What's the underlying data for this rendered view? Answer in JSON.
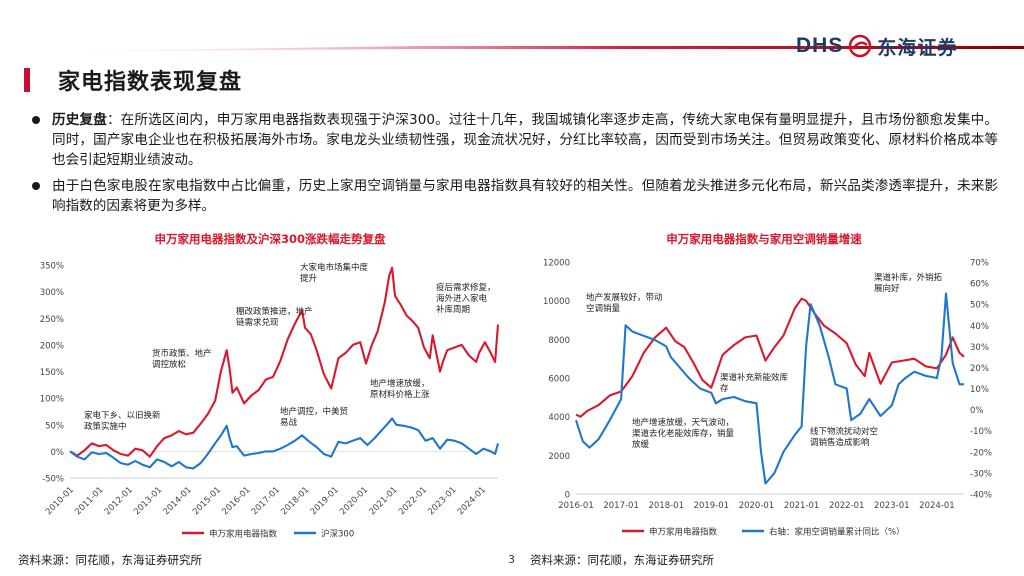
{
  "header": {
    "logo_latin": "DHS",
    "logo_cn": "东海证券",
    "title": "家电指数表现复盘"
  },
  "bullets": [
    {
      "label": "历史复盘",
      "text": "：在所选区间内，申万家用电器指数表现强于沪深300。过往十几年，我国城镇化率逐步走高，传统大家电保有量明显提升，且市场份额愈发集中。同时，国产家电企业也在积极拓展海外市场。家电龙头业绩韧性强，现金流状况好，分红比率较高，因而受到市场关注。但贸易政策变化、原材料价格成本等也会引起短期业绩波动。"
    },
    {
      "label": "",
      "text": "由于白色家电股在家电指数中占比偏重，历史上家用空调销量与家用电器指数具有较好的相关性。但随着龙头推进多元化布局，新兴品类渗透率提升，未来影响指数的因素将更为多样。"
    }
  ],
  "colors": {
    "red": "#d7192e",
    "blue": "#1f77c9",
    "title_red": "#c8102e",
    "navy": "#1f3864"
  },
  "chart_data": [
    {
      "type": "line",
      "title": "申万家用电器指数及沪深300涨跌幅走势复盘",
      "x_labels": [
        "2010-01",
        "2011-01",
        "2012-01",
        "2013-01",
        "2014-01",
        "2015-01",
        "2016-01",
        "2017-01",
        "2018-01",
        "2019-01",
        "2020-01",
        "2021-01",
        "2022-01",
        "2023-01",
        "2024-01"
      ],
      "x_range": [
        2010.0,
        2024.75
      ],
      "y_ticks": [
        "350%",
        "300%",
        "250%",
        "200%",
        "150%",
        "100%",
        "50%",
        "0%",
        "-50%"
      ],
      "ylim": [
        -50,
        350
      ],
      "series": [
        {
          "name": "申万家用电器指数",
          "color": "#d7192e",
          "points": [
            [
              2010.0,
              0
            ],
            [
              2010.25,
              -8
            ],
            [
              2010.5,
              2
            ],
            [
              2010.75,
              15
            ],
            [
              2011.0,
              10
            ],
            [
              2011.25,
              12
            ],
            [
              2011.5,
              2
            ],
            [
              2011.75,
              -5
            ],
            [
              2012.0,
              -8
            ],
            [
              2012.25,
              5
            ],
            [
              2012.5,
              2
            ],
            [
              2012.75,
              -10
            ],
            [
              2013.0,
              10
            ],
            [
              2013.25,
              25
            ],
            [
              2013.5,
              30
            ],
            [
              2013.75,
              38
            ],
            [
              2014.0,
              32
            ],
            [
              2014.25,
              35
            ],
            [
              2014.5,
              52
            ],
            [
              2014.75,
              70
            ],
            [
              2015.0,
              95
            ],
            [
              2015.2,
              150
            ],
            [
              2015.4,
              190
            ],
            [
              2015.5,
              155
            ],
            [
              2015.6,
              110
            ],
            [
              2015.75,
              120
            ],
            [
              2016.0,
              90
            ],
            [
              2016.25,
              105
            ],
            [
              2016.5,
              115
            ],
            [
              2016.75,
              135
            ],
            [
              2017.0,
              140
            ],
            [
              2017.25,
              170
            ],
            [
              2017.5,
              210
            ],
            [
              2017.75,
              240
            ],
            [
              2018.0,
              265
            ],
            [
              2018.1,
              232
            ],
            [
              2018.3,
              220
            ],
            [
              2018.5,
              190
            ],
            [
              2018.75,
              145
            ],
            [
              2019.0,
              118
            ],
            [
              2019.25,
              175
            ],
            [
              2019.5,
              185
            ],
            [
              2019.75,
              200
            ],
            [
              2020.0,
              205
            ],
            [
              2020.2,
              165
            ],
            [
              2020.4,
              200
            ],
            [
              2020.6,
              225
            ],
            [
              2020.85,
              280
            ],
            [
              2021.0,
              330
            ],
            [
              2021.1,
              345
            ],
            [
              2021.2,
              292
            ],
            [
              2021.4,
              275
            ],
            [
              2021.6,
              255
            ],
            [
              2021.8,
              245
            ],
            [
              2022.0,
              232
            ],
            [
              2022.2,
              195
            ],
            [
              2022.4,
              175
            ],
            [
              2022.5,
              218
            ],
            [
              2022.75,
              150
            ],
            [
              2022.85,
              168
            ],
            [
              2023.0,
              190
            ],
            [
              2023.25,
              195
            ],
            [
              2023.5,
              200
            ],
            [
              2023.75,
              180
            ],
            [
              2024.0,
              168
            ],
            [
              2024.1,
              185
            ],
            [
              2024.3,
              205
            ],
            [
              2024.5,
              185
            ],
            [
              2024.65,
              168
            ],
            [
              2024.75,
              238
            ]
          ]
        },
        {
          "name": "沪深300",
          "color": "#1f77c9",
          "points": [
            [
              2010.0,
              0
            ],
            [
              2010.25,
              -10
            ],
            [
              2010.5,
              -15
            ],
            [
              2010.75,
              -2
            ],
            [
              2011.0,
              -5
            ],
            [
              2011.25,
              -3
            ],
            [
              2011.5,
              -12
            ],
            [
              2011.75,
              -22
            ],
            [
              2012.0,
              -25
            ],
            [
              2012.25,
              -18
            ],
            [
              2012.5,
              -25
            ],
            [
              2012.75,
              -30
            ],
            [
              2013.0,
              -15
            ],
            [
              2013.25,
              -20
            ],
            [
              2013.5,
              -28
            ],
            [
              2013.75,
              -20
            ],
            [
              2014.0,
              -30
            ],
            [
              2014.25,
              -32
            ],
            [
              2014.5,
              -22
            ],
            [
              2014.75,
              -5
            ],
            [
              2015.0,
              15
            ],
            [
              2015.2,
              30
            ],
            [
              2015.4,
              48
            ],
            [
              2015.5,
              25
            ],
            [
              2015.6,
              8
            ],
            [
              2015.75,
              10
            ],
            [
              2016.0,
              -8
            ],
            [
              2016.25,
              -5
            ],
            [
              2016.5,
              -3
            ],
            [
              2016.75,
              0
            ],
            [
              2017.0,
              0
            ],
            [
              2017.25,
              5
            ],
            [
              2017.5,
              12
            ],
            [
              2017.75,
              20
            ],
            [
              2018.0,
              30
            ],
            [
              2018.25,
              18
            ],
            [
              2018.5,
              8
            ],
            [
              2018.75,
              -5
            ],
            [
              2019.0,
              -10
            ],
            [
              2019.25,
              18
            ],
            [
              2019.5,
              15
            ],
            [
              2019.75,
              20
            ],
            [
              2020.0,
              25
            ],
            [
              2020.25,
              12
            ],
            [
              2020.5,
              25
            ],
            [
              2020.75,
              40
            ],
            [
              2021.0,
              55
            ],
            [
              2021.1,
              62
            ],
            [
              2021.25,
              50
            ],
            [
              2021.5,
              48
            ],
            [
              2021.75,
              45
            ],
            [
              2022.0,
              40
            ],
            [
              2022.25,
              20
            ],
            [
              2022.5,
              25
            ],
            [
              2022.75,
              5
            ],
            [
              2023.0,
              22
            ],
            [
              2023.25,
              20
            ],
            [
              2023.5,
              15
            ],
            [
              2023.75,
              5
            ],
            [
              2024.0,
              -5
            ],
            [
              2024.25,
              5
            ],
            [
              2024.5,
              0
            ],
            [
              2024.65,
              -5
            ],
            [
              2024.75,
              15
            ]
          ]
        }
      ],
      "annotations": [
        {
          "lines": [
            "家电下乡、以旧换新",
            "政策实施中"
          ]
        },
        {
          "lines": [
            "货币政策、地产",
            "调控放松"
          ]
        },
        {
          "lines": [
            "棚改政策推进，地产",
            "链需求兑现"
          ]
        },
        {
          "lines": [
            "大家电市场集中度",
            "提升"
          ]
        },
        {
          "lines": [
            "地产调控，中美贸",
            "易战"
          ]
        },
        {
          "lines": [
            "地产增速放缓，",
            "原材料价格上涨"
          ]
        },
        {
          "lines": [
            "疫后需求修复，",
            "海外进入家电",
            "补库周期"
          ]
        }
      ],
      "legend": {
        "position": "bottom"
      }
    },
    {
      "type": "line",
      "title": "申万家用电器指数与家用空调销量增速",
      "x_labels": [
        "2016-01",
        "2017-01",
        "2018-01",
        "2019-01",
        "2020-01",
        "2021-01",
        "2022-01",
        "2023-01",
        "2024-01"
      ],
      "x_range": [
        2016.0,
        2024.6
      ],
      "y_ticks_left": [
        "12000",
        "10000",
        "8000",
        "6000",
        "4000",
        "2000",
        "0"
      ],
      "ylim_left": [
        0,
        12000
      ],
      "y_ticks_right": [
        "70%",
        "60%",
        "50%",
        "40%",
        "30%",
        "20%",
        "10%",
        "0%",
        "-10%",
        "-20%",
        "-30%",
        "-40%"
      ],
      "ylim_right": [
        -40,
        70
      ],
      "series": [
        {
          "name": "申万家用电器指数",
          "axis": "left",
          "color": "#d7192e",
          "points": [
            [
              2016.0,
              4100
            ],
            [
              2016.1,
              4000
            ],
            [
              2016.25,
              4300
            ],
            [
              2016.5,
              4600
            ],
            [
              2016.75,
              5100
            ],
            [
              2017.0,
              5300
            ],
            [
              2017.25,
              6100
            ],
            [
              2017.5,
              7300
            ],
            [
              2017.75,
              8100
            ],
            [
              2018.0,
              8600
            ],
            [
              2018.2,
              7900
            ],
            [
              2018.4,
              7600
            ],
            [
              2018.6,
              6800
            ],
            [
              2018.8,
              5900
            ],
            [
              2019.0,
              5500
            ],
            [
              2019.25,
              7200
            ],
            [
              2019.5,
              7700
            ],
            [
              2019.75,
              8100
            ],
            [
              2020.0,
              8200
            ],
            [
              2020.2,
              6900
            ],
            [
              2020.4,
              7600
            ],
            [
              2020.6,
              8200
            ],
            [
              2020.85,
              9600
            ],
            [
              2021.0,
              10100
            ],
            [
              2021.1,
              10000
            ],
            [
              2021.3,
              9300
            ],
            [
              2021.5,
              8700
            ],
            [
              2021.75,
              8300
            ],
            [
              2022.0,
              7800
            ],
            [
              2022.2,
              6700
            ],
            [
              2022.4,
              6100
            ],
            [
              2022.5,
              7300
            ],
            [
              2022.75,
              5700
            ],
            [
              2023.0,
              6800
            ],
            [
              2023.25,
              6900
            ],
            [
              2023.5,
              7000
            ],
            [
              2023.75,
              6600
            ],
            [
              2024.0,
              6500
            ],
            [
              2024.2,
              7200
            ],
            [
              2024.35,
              8100
            ],
            [
              2024.5,
              7300
            ],
            [
              2024.6,
              7100
            ]
          ]
        },
        {
          "name": "右轴：家用空调销量累计同比（%）",
          "axis": "right",
          "color": "#1f77c9",
          "points": [
            [
              2016.0,
              -5
            ],
            [
              2016.15,
              -15
            ],
            [
              2016.3,
              -18
            ],
            [
              2016.5,
              -14
            ],
            [
              2016.75,
              -5
            ],
            [
              2017.0,
              5
            ],
            [
              2017.1,
              40
            ],
            [
              2017.25,
              37
            ],
            [
              2017.5,
              35
            ],
            [
              2017.75,
              33
            ],
            [
              2018.0,
              30
            ],
            [
              2018.1,
              25
            ],
            [
              2018.3,
              20
            ],
            [
              2018.5,
              15
            ],
            [
              2018.75,
              10
            ],
            [
              2019.0,
              8
            ],
            [
              2019.1,
              3
            ],
            [
              2019.25,
              5
            ],
            [
              2019.5,
              6
            ],
            [
              2019.75,
              4
            ],
            [
              2020.0,
              3
            ],
            [
              2020.1,
              -20
            ],
            [
              2020.2,
              -35
            ],
            [
              2020.4,
              -30
            ],
            [
              2020.6,
              -20
            ],
            [
              2020.85,
              -12
            ],
            [
              2021.0,
              -8
            ],
            [
              2021.1,
              30
            ],
            [
              2021.2,
              50
            ],
            [
              2021.4,
              40
            ],
            [
              2021.6,
              25
            ],
            [
              2021.75,
              12
            ],
            [
              2022.0,
              10
            ],
            [
              2022.1,
              -5
            ],
            [
              2022.3,
              -2
            ],
            [
              2022.5,
              5
            ],
            [
              2022.75,
              -3
            ],
            [
              2023.0,
              2
            ],
            [
              2023.15,
              12
            ],
            [
              2023.3,
              15
            ],
            [
              2023.5,
              18
            ],
            [
              2023.75,
              16
            ],
            [
              2024.0,
              15
            ],
            [
              2024.1,
              25
            ],
            [
              2024.2,
              55
            ],
            [
              2024.35,
              22
            ],
            [
              2024.5,
              12
            ],
            [
              2024.6,
              12
            ]
          ]
        }
      ],
      "annotations": [
        {
          "lines": [
            "地产发展较好，带动",
            "空调销量"
          ]
        },
        {
          "lines": [
            "渠道补充新能效库",
            "存"
          ]
        },
        {
          "lines": [
            "地产增速放缓，天气波动，",
            "渠道去化老能效库存，销量",
            "放缓"
          ]
        },
        {
          "lines": [
            "线下物流扰动对空",
            "调销售造成影响"
          ]
        },
        {
          "lines": [
            "渠道补库，外销拓",
            "展向好"
          ]
        }
      ],
      "legend": {
        "position": "bottom"
      }
    }
  ],
  "sources": {
    "left": "资料来源：同花顺，东海证券研究所",
    "right": "资料来源：同花顺，东海证券研究所"
  },
  "page_number": "3"
}
